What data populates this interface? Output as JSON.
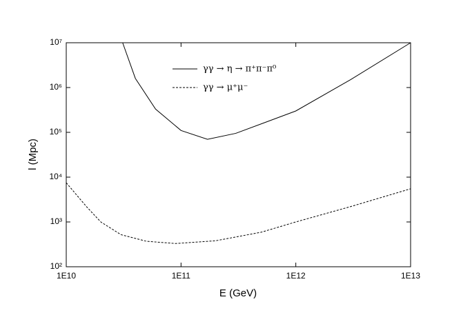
{
  "chart_data": {
    "type": "line",
    "xlabel": "E (GeV)",
    "ylabel": "l (Mpc)",
    "xscale": "log",
    "yscale": "log",
    "xlim": [
      10000000000.0,
      10000000000000.0
    ],
    "ylim": [
      100,
      10000000.0
    ],
    "xticks": [
      {
        "value": 10000000000.0,
        "label": "1E10"
      },
      {
        "value": 100000000000.0,
        "label": "1E11"
      },
      {
        "value": 1000000000000.0,
        "label": "1E12"
      },
      {
        "value": 10000000000000.0,
        "label": "1E13"
      }
    ],
    "yticks": [
      {
        "value": 100,
        "label": "10²"
      },
      {
        "value": 1000,
        "label": "10³"
      },
      {
        "value": 10000,
        "label": "10⁴"
      },
      {
        "value": 100000,
        "label": "10⁵"
      },
      {
        "value": 1000000,
        "label": "10⁶"
      },
      {
        "value": 10000000,
        "label": "10⁷"
      }
    ],
    "legend": "upper center",
    "series": [
      {
        "name": "γγ → η →  π⁺π⁻π⁰",
        "color": "#000000",
        "dash": "solid",
        "x": [
          31000000000.0,
          40000000000.0,
          60000000000.0,
          100000000000.0,
          170000000000.0,
          300000000000.0,
          1000000000000.0,
          3000000000000.0,
          10000000000000.0
        ],
        "values": [
          10000000,
          1600000,
          330000,
          110000,
          70000,
          95000,
          300000,
          1500000,
          10000000
        ]
      },
      {
        "name": "γγ → μ⁺μ⁻",
        "color": "#000000",
        "dash": "dashed",
        "x": [
          10000000000.0,
          15000000000.0,
          20000000000.0,
          30000000000.0,
          50000000000.0,
          90000000000.0,
          200000000000.0,
          500000000000.0,
          1000000000000.0,
          3000000000000.0,
          10000000000000.0
        ],
        "values": [
          7500,
          2200,
          1000,
          520,
          370,
          330,
          380,
          590,
          1000,
          2200,
          5500
        ]
      }
    ]
  }
}
